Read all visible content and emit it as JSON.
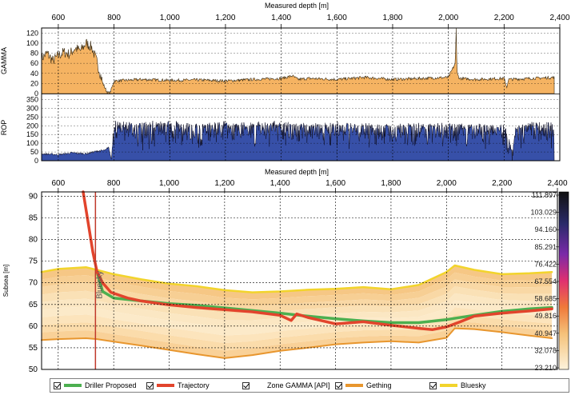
{
  "chart_data": [
    {
      "type": "area",
      "xlabel": "Measured depth [m]",
      "ylabel": "GAMMA",
      "xlim": [
        540,
        2400
      ],
      "ylim": [
        0,
        130
      ],
      "x_ticks": [
        "600",
        "800",
        "1,000",
        "1,200",
        "1,400",
        "1,600",
        "1,800",
        "2,000",
        "2,200",
        "2,400"
      ],
      "y_ticks": [
        "0",
        "20",
        "40",
        "60",
        "80",
        "100",
        "120"
      ],
      "series": [
        {
          "x": [
            540,
            560,
            580,
            600,
            620,
            640,
            660,
            680,
            700,
            720,
            740,
            760,
            775,
            785,
            800,
            900,
            1000,
            1100,
            1200,
            1300,
            1400,
            1440,
            1460,
            1500,
            1600,
            1700,
            1800,
            1900,
            2000,
            2025,
            2028,
            2031,
            2040,
            2100,
            2200,
            2210,
            2215,
            2300,
            2380
          ],
          "values": [
            70,
            80,
            65,
            75,
            82,
            78,
            90,
            85,
            100,
            92,
            60,
            20,
            3,
            0,
            25,
            28,
            26,
            27,
            25,
            28,
            30,
            35,
            28,
            30,
            28,
            32,
            28,
            30,
            32,
            60,
            130,
            40,
            30,
            28,
            30,
            12,
            28,
            30,
            32
          ],
          "color": "#F5B362"
        }
      ]
    },
    {
      "type": "area",
      "ylabel": "ROP",
      "xlim": [
        540,
        2400
      ],
      "ylim": [
        0,
        380
      ],
      "y_ticks": [
        "0",
        "50",
        "100",
        "150",
        "200",
        "250",
        "300",
        "350"
      ],
      "series": [
        {
          "x": [
            540,
            600,
            650,
            700,
            740,
            770,
            780,
            790,
            800,
            900,
            1000,
            1100,
            1200,
            1300,
            1400,
            1500,
            1600,
            1700,
            1800,
            1900,
            2000,
            2100,
            2200,
            2230,
            2240,
            2300,
            2380
          ],
          "values": [
            40,
            35,
            45,
            40,
            55,
            60,
            80,
            10,
            230,
            215,
            225,
            210,
            220,
            215,
            225,
            205,
            215,
            210,
            205,
            210,
            215,
            205,
            200,
            90,
            200,
            215,
            220
          ],
          "color": "#3750A8"
        }
      ]
    },
    {
      "type": "line",
      "xlabel": "Measured depth [m]",
      "ylabel": "Subsea [m]",
      "xlim": [
        540,
        2400
      ],
      "ylim": [
        50,
        91
      ],
      "x_ticks": [
        "600",
        "800",
        "1,000",
        "1,200",
        "1,400",
        "1,600",
        "1,800",
        "2,000",
        "2,200",
        "2,400"
      ],
      "y_ticks": [
        "50",
        "55",
        "60",
        "65",
        "70",
        "75",
        "80",
        "85",
        "90"
      ],
      "colorbar_ticks": [
        "111.897",
        "103.029",
        "94.160",
        "85.291",
        "76.422",
        "67.554",
        "58.685",
        "49.816",
        "40.947",
        "32.078",
        "23.210"
      ],
      "annotations": [
        {
          "text": "Bluesky",
          "x": 740
        }
      ],
      "series": [
        {
          "name": "Driller Proposed",
          "color": "#4CAF50",
          "x": [
            740,
            760,
            800,
            900,
            1000,
            1100,
            1200,
            1300,
            1400,
            1500,
            1600,
            1700,
            1800,
            1900,
            2000,
            2100,
            2200,
            2300,
            2380
          ],
          "values": [
            72.5,
            68,
            66.5,
            65.8,
            65.2,
            64.8,
            64.2,
            63.6,
            63,
            62.3,
            61.7,
            61.2,
            60.8,
            60.8,
            61.5,
            62.5,
            63.4,
            64,
            64.3
          ]
        },
        {
          "name": "Trajectory",
          "color": "#E2442C",
          "x": [
            690,
            710,
            725,
            740,
            760,
            790,
            850,
            900,
            1000,
            1100,
            1200,
            1300,
            1400,
            1440,
            1460,
            1500,
            1600,
            1700,
            1800,
            1900,
            1950,
            2000,
            2050,
            2100,
            2200,
            2300,
            2380
          ],
          "values": [
            91,
            83,
            77,
            72.5,
            70,
            67.8,
            66.5,
            65.8,
            64.9,
            64.3,
            63.8,
            63.3,
            62.5,
            61.3,
            62.8,
            62,
            60.5,
            61,
            60.2,
            59.5,
            59.2,
            59.8,
            61,
            62.3,
            63,
            63.5,
            64
          ]
        },
        {
          "name": "Bluesky",
          "color": "#F2D42C",
          "x": [
            540,
            600,
            700,
            800,
            900,
            1000,
            1100,
            1200,
            1300,
            1400,
            1500,
            1600,
            1700,
            1800,
            1900,
            2000,
            2030,
            2100,
            2200,
            2300,
            2380
          ],
          "values": [
            72.5,
            73.2,
            73.6,
            72,
            70.8,
            69.8,
            69.2,
            68.3,
            67.8,
            68,
            68.4,
            68.6,
            69,
            68.5,
            69.5,
            72.5,
            74,
            73,
            72,
            72.2,
            72.5
          ]
        },
        {
          "name": "Gething",
          "color": "#E8962E",
          "x": [
            540,
            600,
            700,
            740,
            800,
            900,
            1000,
            1100,
            1200,
            1300,
            1400,
            1500,
            1600,
            1700,
            1800,
            1900,
            2000,
            2030,
            2100,
            2200,
            2300,
            2380
          ],
          "values": [
            56.8,
            57,
            57.2,
            57,
            56.4,
            55.5,
            54.5,
            53.5,
            52.6,
            53.3,
            54.3,
            55,
            55.8,
            56.2,
            56.5,
            56.2,
            57.3,
            59.5,
            59.3,
            58.6,
            57.8,
            57.2
          ]
        }
      ]
    }
  ],
  "legend": {
    "items": [
      {
        "label": "Driller Proposed",
        "color": "#4CAF50"
      },
      {
        "label": "Trajectory",
        "color": "#E2442C"
      },
      {
        "label": "Zone GAMMA [API]",
        "color": ""
      },
      {
        "label": "Gething",
        "color": "#E8962E"
      },
      {
        "label": "Bluesky",
        "color": "#F2D42C"
      }
    ]
  }
}
